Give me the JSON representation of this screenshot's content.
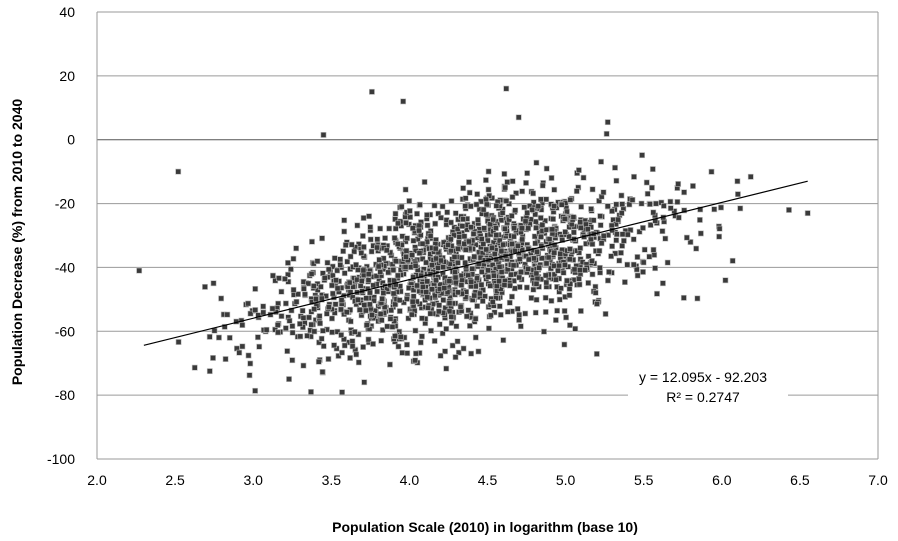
{
  "chart_data": {
    "type": "scatter",
    "title": "",
    "xlabel": "Population Scale  (2010) in logarithm (base 10)",
    "ylabel": "Population Decrease (%) from 2010 to 2040",
    "xlim": [
      2.0,
      7.0
    ],
    "ylim": [
      -100,
      40
    ],
    "x_ticks": [
      "2.0",
      "2.5",
      "3.0",
      "3.5",
      "4.0",
      "4.5",
      "5.0",
      "5.5",
      "6.0",
      "6.5",
      "7.0"
    ],
    "y_ticks": [
      "40",
      "20",
      "0",
      "-20",
      "-40",
      "-60",
      "-80",
      "-100"
    ],
    "grid": "horizontal",
    "marker_color": "#3a3a3a",
    "trendline": {
      "slope": 12.095,
      "intercept": -92.203,
      "x_range": [
        2.3,
        6.55
      ],
      "equation": "y = 12.095x - 92.203",
      "r_squared": "R² = 0.2747"
    },
    "notable_points": [
      {
        "x": 2.27,
        "y": -41
      },
      {
        "x": 2.52,
        "y": -10
      },
      {
        "x": 3.37,
        "y": -79
      },
      {
        "x": 3.76,
        "y": 15
      },
      {
        "x": 3.96,
        "y": 12
      },
      {
        "x": 4.62,
        "y": 16
      },
      {
        "x": 5.27,
        "y": 5.5
      },
      {
        "x": 6.55,
        "y": -23
      },
      {
        "x": 6.43,
        "y": -22
      },
      {
        "x": 6.1,
        "y": -13
      },
      {
        "x": 3.45,
        "y": 1.5
      },
      {
        "x": 4.7,
        "y": 7
      }
    ]
  }
}
